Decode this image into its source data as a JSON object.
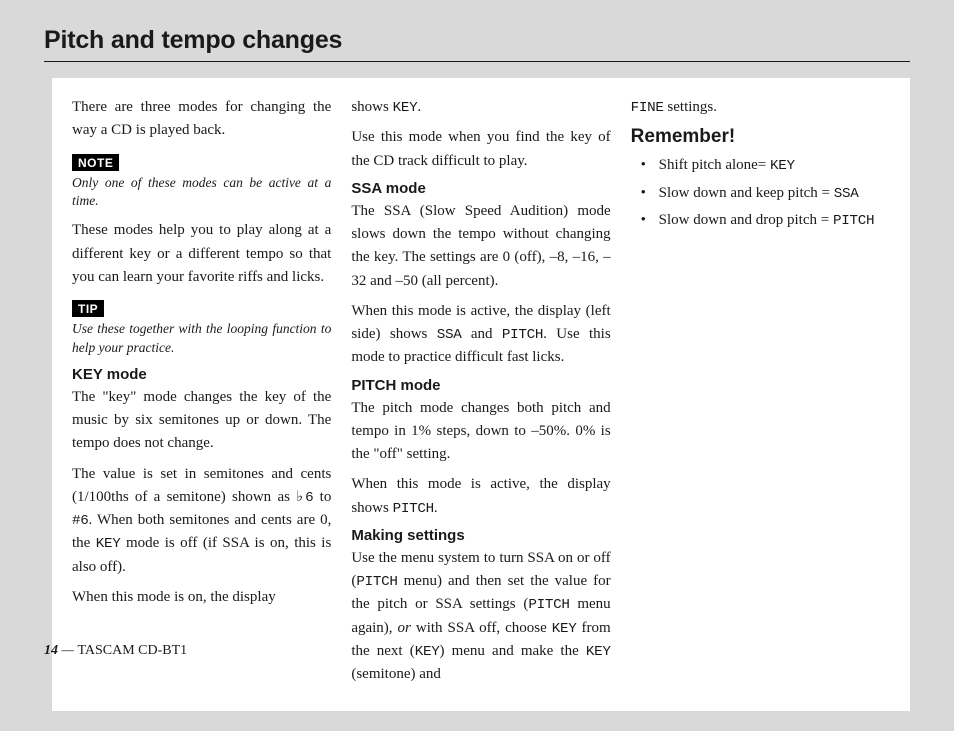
{
  "title": "Pitch and tempo changes",
  "col1": {
    "intro": "There are three modes for changing the way a CD is played back.",
    "note_label": "NOTE",
    "note_text": "Only one of these modes can be active at a time.",
    "para2": "These modes help you to play along at a different key or a different tempo so that you can learn your favorite riffs and licks.",
    "tip_label": "TIP",
    "tip_text": "Use these together with the looping function to help your practice.",
    "key_heading": "KEY mode",
    "key_p1": "The \"key\" mode changes the key of the music by six semitones up or down. The tempo does not change.",
    "key_p2_a": "The value is set in semitones and cents (1/100ths of a semitone) shown as ",
    "key_p2_b6": "♭6",
    "key_p2_mid": " to ",
    "key_p2_s6": "#6",
    "key_p2_b": ". When both semitones and cents are 0, the ",
    "key_p2_key": "KEY",
    "key_p2_c": " mode is off (if SSA is on, this is also off).",
    "key_p3": "When this mode is on, the display"
  },
  "col2": {
    "p0a": "shows ",
    "p0_key": "KEY",
    "p0b": ".",
    "p1": "Use this mode when you find the key of the CD track difficult to play.",
    "ssa_heading": "SSA mode",
    "ssa_p1": "The SSA (Slow Speed Audition) mode slows down the tempo without changing the key. The settings are 0 (off), –8, –16, –32 and –50 (all percent).",
    "ssa_p2a": "When this mode is active, the display (left side) shows ",
    "ssa_p2_ssa": "SSA",
    "ssa_p2_and": " and ",
    "ssa_p2_pitch": "PITCH",
    "ssa_p2b": ". Use this mode to practice difficult fast licks.",
    "pitch_heading": "PITCH mode",
    "pitch_p1": "The pitch mode changes both pitch and tempo in 1% steps, down to –50%. 0% is the \"off\" setting.",
    "pitch_p2a": "When this mode is active, the display shows ",
    "pitch_p2_pitch": "PITCH",
    "pitch_p2b": ".",
    "making_heading": "Making settings",
    "making_p1a": "Use the menu system to turn SSA on or off (",
    "making_p1_pitch1": "PITCH",
    "making_p1b": " menu) and then set the value for the pitch or SSA settings (",
    "making_p1_pitch2": "PITCH",
    "making_p1c": " menu again), ",
    "making_p1_or": "or",
    "making_p1d": " with SSA off, choose ",
    "making_p1_key": "KEY",
    "making_p1e": " from the next (",
    "making_p1_key2": "KEY",
    "making_p1f": ") menu and make the ",
    "making_p1_key3": "KEY",
    "making_p1g": " (semitone) and"
  },
  "col3": {
    "p0_fine": "FINE",
    "p0": " settings.",
    "remember_heading": "Remember!",
    "b1a": "Shift pitch alone= ",
    "b1_key": "KEY",
    "b2a": "Slow down and keep pitch = ",
    "b2_ssa": "SSA",
    "b3a": "Slow down and drop pitch = ",
    "b3_pitch": "PITCH"
  },
  "footer": {
    "page": "14",
    "sep": " — ",
    "model": "TASCAM CD-BT1"
  }
}
